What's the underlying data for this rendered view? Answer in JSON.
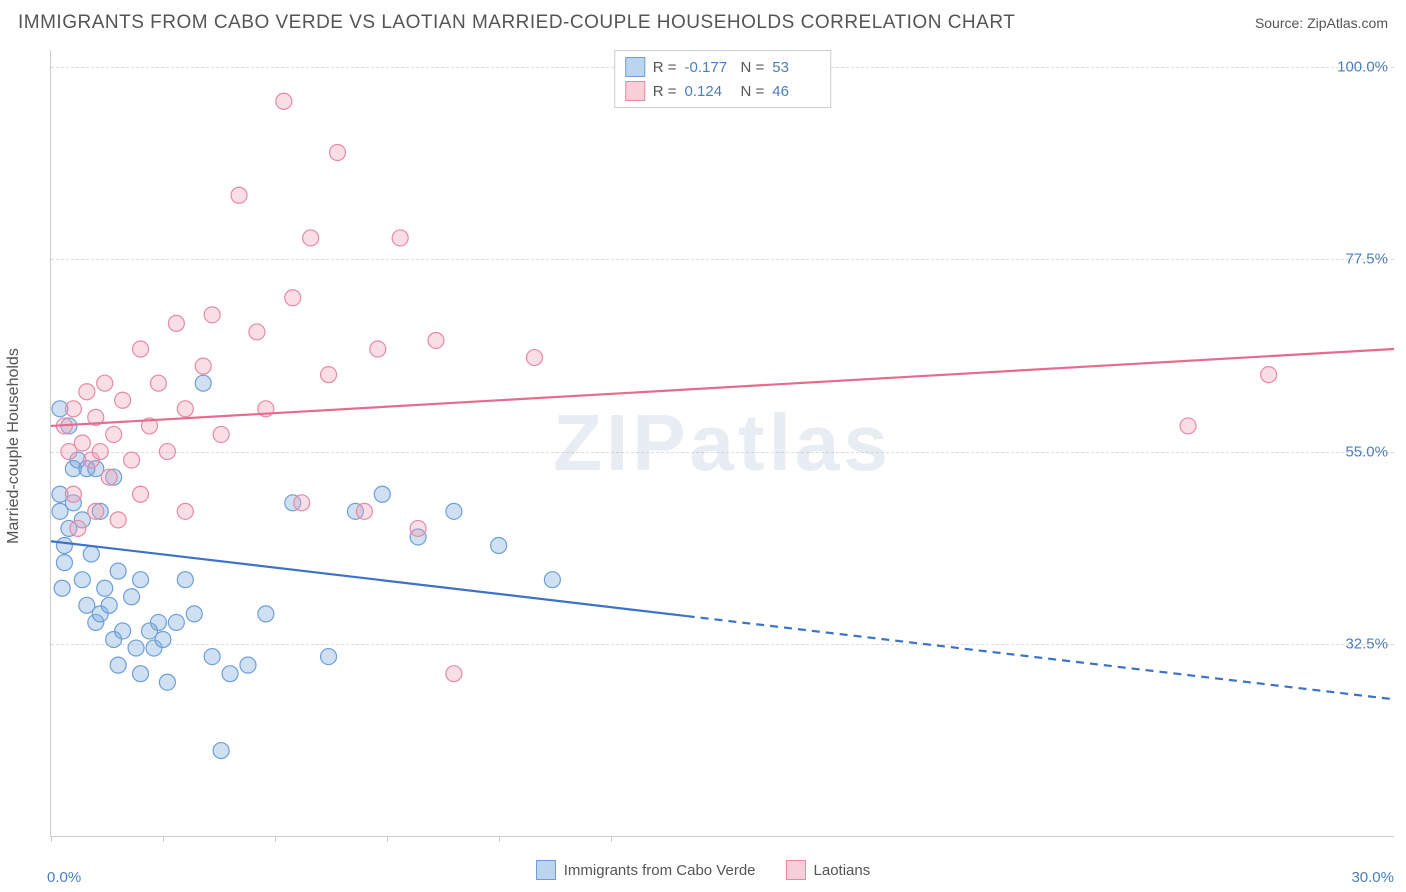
{
  "title": "IMMIGRANTS FROM CABO VERDE VS LAOTIAN MARRIED-COUPLE HOUSEHOLDS CORRELATION CHART",
  "source_label": "Source: ZipAtlas.com",
  "watermark": "ZIPatlas",
  "y_axis_label": "Married-couple Households",
  "chart": {
    "type": "scatter",
    "xlim": [
      0,
      30
    ],
    "ylim": [
      10,
      102
    ],
    "background_color": "#ffffff",
    "grid_color": "#dddddd",
    "axis_color": "#cccccc",
    "y_tick_labels": [
      {
        "v": 32.5,
        "label": "32.5%"
      },
      {
        "v": 55.0,
        "label": "55.0%"
      },
      {
        "v": 77.5,
        "label": "77.5%"
      },
      {
        "v": 100.0,
        "label": "100.0%"
      }
    ],
    "x_tick_positions": [
      0,
      2.5,
      5,
      7.5,
      10,
      12.5
    ],
    "x_min_label": "0.0%",
    "x_max_label": "30.0%",
    "marker_radius": 8,
    "marker_stroke_width": 1.2,
    "line_width": 2.2,
    "series": [
      {
        "id": "cabo_verde",
        "label": "Immigrants from Cabo Verde",
        "fill": "rgba(120,165,220,0.35)",
        "stroke": "#6d9fd6",
        "swatch_fill": "#bcd5ef",
        "swatch_stroke": "#6d9fd6",
        "r_value": "-0.177",
        "n_value": "53",
        "trend": {
          "color": "#3d73c4",
          "solid_to_x": 14.2,
          "y_at_x0": 44.5,
          "y_at_x30": 26.0
        },
        "points": [
          [
            0.2,
            60
          ],
          [
            0.2,
            50
          ],
          [
            0.2,
            48
          ],
          [
            0.3,
            44
          ],
          [
            0.25,
            39
          ],
          [
            0.3,
            42
          ],
          [
            0.4,
            46
          ],
          [
            0.4,
            58
          ],
          [
            0.5,
            53
          ],
          [
            0.5,
            49
          ],
          [
            0.6,
            54
          ],
          [
            0.7,
            47
          ],
          [
            0.7,
            40
          ],
          [
            0.8,
            53
          ],
          [
            0.8,
            37
          ],
          [
            0.9,
            43
          ],
          [
            1.0,
            35
          ],
          [
            1.0,
            53
          ],
          [
            1.1,
            48
          ],
          [
            1.1,
            36
          ],
          [
            1.2,
            39
          ],
          [
            1.3,
            37
          ],
          [
            1.4,
            52
          ],
          [
            1.4,
            33
          ],
          [
            1.5,
            41
          ],
          [
            1.6,
            34
          ],
          [
            1.5,
            30
          ],
          [
            1.8,
            38
          ],
          [
            1.9,
            32
          ],
          [
            2.0,
            40
          ],
          [
            2.0,
            29
          ],
          [
            2.2,
            34
          ],
          [
            2.3,
            32
          ],
          [
            2.4,
            35
          ],
          [
            2.5,
            33
          ],
          [
            2.6,
            28
          ],
          [
            2.8,
            35
          ],
          [
            3.0,
            40
          ],
          [
            3.2,
            36
          ],
          [
            3.4,
            63
          ],
          [
            3.6,
            31
          ],
          [
            3.8,
            20
          ],
          [
            4.0,
            29
          ],
          [
            4.4,
            30
          ],
          [
            4.8,
            36
          ],
          [
            5.4,
            49
          ],
          [
            6.2,
            31
          ],
          [
            6.8,
            48
          ],
          [
            7.4,
            50
          ],
          [
            8.2,
            45
          ],
          [
            9.0,
            48
          ],
          [
            10.0,
            44
          ],
          [
            11.2,
            40
          ]
        ]
      },
      {
        "id": "laotians",
        "label": "Laotians",
        "fill": "rgba(240,160,180,0.35)",
        "stroke": "#e68aa4",
        "swatch_fill": "#f6cfd9",
        "swatch_stroke": "#e68aa4",
        "r_value": "0.124",
        "n_value": "46",
        "trend": {
          "color": "#e56c8f",
          "solid_to_x": 30,
          "y_at_x0": 58.0,
          "y_at_x30": 67.0
        },
        "points": [
          [
            0.3,
            58
          ],
          [
            0.4,
            55
          ],
          [
            0.5,
            50
          ],
          [
            0.5,
            60
          ],
          [
            0.6,
            46
          ],
          [
            0.7,
            56
          ],
          [
            0.8,
            62
          ],
          [
            0.9,
            54
          ],
          [
            1.0,
            59
          ],
          [
            1.0,
            48
          ],
          [
            1.1,
            55
          ],
          [
            1.2,
            63
          ],
          [
            1.3,
            52
          ],
          [
            1.4,
            57
          ],
          [
            1.5,
            47
          ],
          [
            1.6,
            61
          ],
          [
            1.8,
            54
          ],
          [
            2.0,
            50
          ],
          [
            2.0,
            67
          ],
          [
            2.2,
            58
          ],
          [
            2.4,
            63
          ],
          [
            2.6,
            55
          ],
          [
            2.8,
            70
          ],
          [
            3.0,
            60
          ],
          [
            3.0,
            48
          ],
          [
            3.4,
            65
          ],
          [
            3.6,
            71
          ],
          [
            3.8,
            57
          ],
          [
            4.2,
            85
          ],
          [
            4.6,
            69
          ],
          [
            4.8,
            60
          ],
          [
            5.2,
            96
          ],
          [
            5.4,
            73
          ],
          [
            5.6,
            49
          ],
          [
            5.8,
            80
          ],
          [
            6.2,
            64
          ],
          [
            6.4,
            90
          ],
          [
            7.0,
            48
          ],
          [
            7.3,
            67
          ],
          [
            7.8,
            80
          ],
          [
            8.2,
            46
          ],
          [
            8.6,
            68
          ],
          [
            9.0,
            29
          ],
          [
            10.8,
            66
          ],
          [
            25.4,
            58
          ],
          [
            27.2,
            64
          ]
        ]
      }
    ]
  },
  "legend_labels": {
    "R": "R =",
    "N": "N ="
  }
}
